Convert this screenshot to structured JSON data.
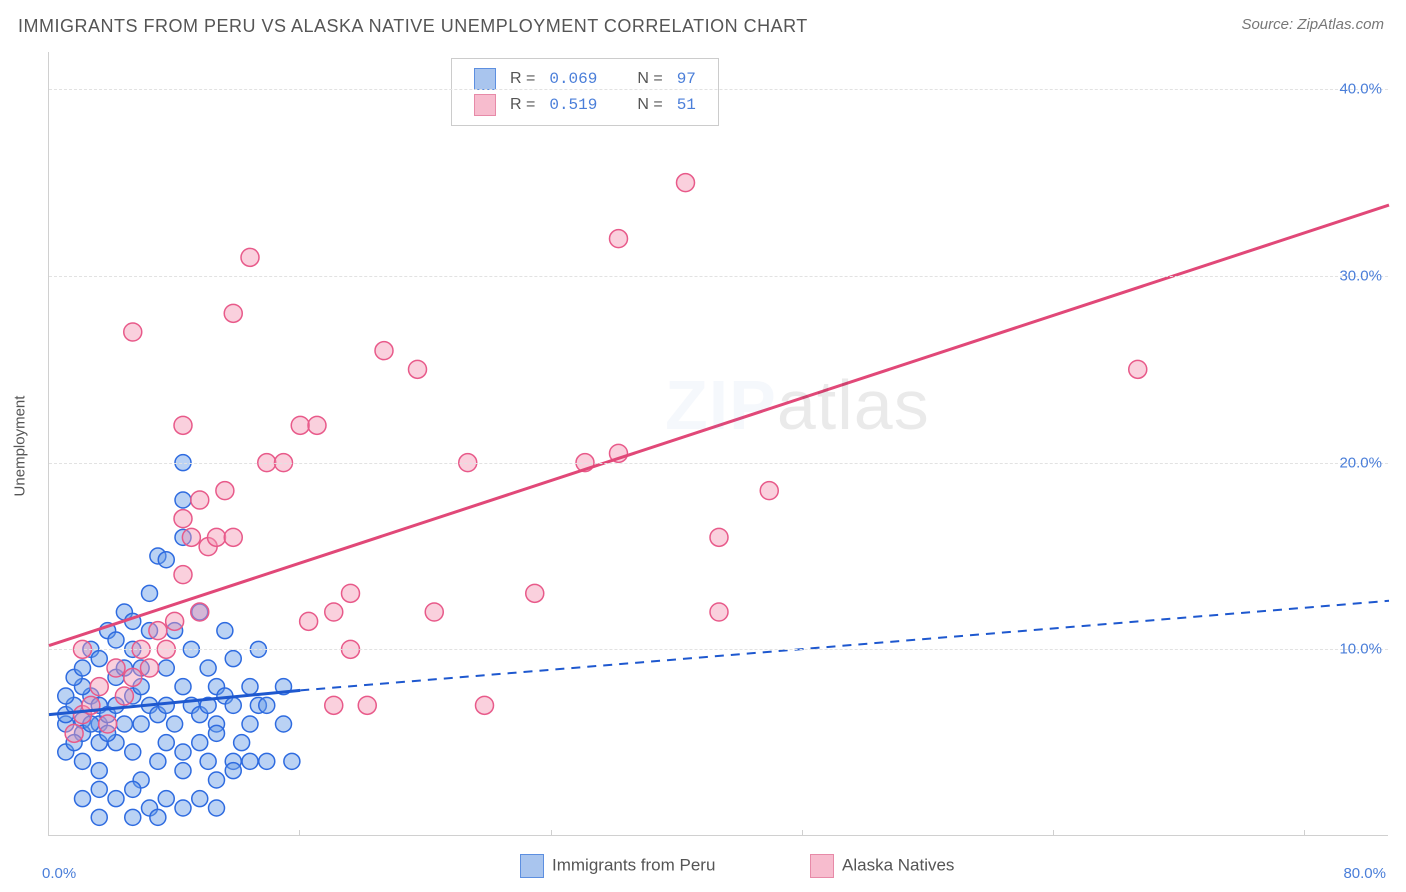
{
  "title": "IMMIGRANTS FROM PERU VS ALASKA NATIVE UNEMPLOYMENT CORRELATION CHART",
  "source": "Source: ZipAtlas.com",
  "ylabel": "Unemployment",
  "watermark": {
    "bold": "ZIP",
    "rest": "atlas"
  },
  "axes": {
    "xmin": 0,
    "xmax": 80,
    "ymin": 0,
    "ymax": 42,
    "xticks": [
      0,
      80
    ],
    "xtick_marks": [
      15,
      30,
      45,
      60,
      75
    ],
    "yticks": [
      10,
      20,
      30,
      40
    ],
    "xtick_labels": [
      "0.0%",
      "80.0%"
    ],
    "ytick_labels": [
      "10.0%",
      "20.0%",
      "30.0%",
      "40.0%"
    ],
    "grid_color": "#e2e2e2",
    "axis_color": "#d0d0d0"
  },
  "series": [
    {
      "name": "Immigrants from Peru",
      "short": "peru",
      "color": "#2e6be0",
      "fill": "rgba(103,155,230,0.45)",
      "swatch_fill": "#a9c5ee",
      "swatch_border": "#5d8fe0",
      "marker_r": 8,
      "stroke_w": 1.5,
      "R": "0.069",
      "N": "97",
      "trend": {
        "x1": 0,
        "y1": 6.5,
        "x2": 15,
        "y2": 7.8,
        "ext_x2": 80,
        "ext_y2": 12.6,
        "color": "#1e58cf",
        "width": 3,
        "dash": "9,7"
      },
      "points": [
        [
          1,
          6
        ],
        [
          1,
          6.5
        ],
        [
          1.5,
          7
        ],
        [
          2,
          6.2
        ],
        [
          2,
          5.5
        ],
        [
          2.5,
          7.5
        ],
        [
          2,
          8
        ],
        [
          3,
          6
        ],
        [
          3,
          7
        ],
        [
          3,
          5
        ],
        [
          3.5,
          6.5
        ],
        [
          4,
          7
        ],
        [
          4,
          8.5
        ],
        [
          4.5,
          6
        ],
        [
          4.5,
          9
        ],
        [
          5,
          7.5
        ],
        [
          5,
          10
        ],
        [
          5.5,
          6
        ],
        [
          5.5,
          8
        ],
        [
          6,
          7
        ],
        [
          6,
          11
        ],
        [
          6,
          13
        ],
        [
          6.5,
          6.5
        ],
        [
          6.5,
          15
        ],
        [
          7,
          7
        ],
        [
          7,
          9
        ],
        [
          7,
          14.8
        ],
        [
          7.5,
          6
        ],
        [
          7.5,
          11
        ],
        [
          8,
          8
        ],
        [
          8,
          16
        ],
        [
          8,
          18
        ],
        [
          8,
          20
        ],
        [
          8.5,
          7
        ],
        [
          8.5,
          10
        ],
        [
          9,
          6.5
        ],
        [
          9,
          12
        ],
        [
          9.5,
          7
        ],
        [
          9.5,
          9
        ],
        [
          10,
          8
        ],
        [
          10,
          6
        ],
        [
          10.5,
          7.5
        ],
        [
          10.5,
          11
        ],
        [
          11,
          7
        ],
        [
          11,
          9.5
        ],
        [
          11,
          4
        ],
        [
          12,
          8
        ],
        [
          12,
          6
        ],
        [
          12.5,
          7
        ],
        [
          12.5,
          10
        ],
        [
          1,
          4.5
        ],
        [
          2,
          4
        ],
        [
          3,
          3.5
        ],
        [
          4,
          5
        ],
        [
          5,
          4.5
        ],
        [
          5.5,
          3
        ],
        [
          6.5,
          4
        ],
        [
          7,
          5
        ],
        [
          8,
          4.5
        ],
        [
          8,
          3.5
        ],
        [
          9,
          5
        ],
        [
          9.5,
          4
        ],
        [
          10,
          3
        ],
        [
          10,
          5.5
        ],
        [
          11,
          3.5
        ],
        [
          11.5,
          5
        ],
        [
          12,
          4
        ],
        [
          1.5,
          5
        ],
        [
          2.5,
          6
        ],
        [
          3.5,
          5.5
        ],
        [
          1,
          7.5
        ],
        [
          1.5,
          8.5
        ],
        [
          2,
          9
        ],
        [
          2.5,
          10
        ],
        [
          3,
          9.5
        ],
        [
          3.5,
          11
        ],
        [
          4,
          10.5
        ],
        [
          4.5,
          12
        ],
        [
          5,
          11.5
        ],
        [
          5.5,
          9
        ],
        [
          13,
          7
        ],
        [
          13,
          4
        ],
        [
          14,
          8
        ],
        [
          14,
          6
        ],
        [
          14.5,
          4
        ],
        [
          2,
          2
        ],
        [
          3,
          2.5
        ],
        [
          4,
          2
        ],
        [
          5,
          2.5
        ],
        [
          6,
          1.5
        ],
        [
          7,
          2
        ],
        [
          8,
          1.5
        ],
        [
          9,
          2
        ],
        [
          10,
          1.5
        ],
        [
          5,
          1
        ],
        [
          6.5,
          1
        ],
        [
          3,
          1
        ]
      ]
    },
    {
      "name": "Alaska Natives",
      "short": "alaska",
      "color": "#e85a8a",
      "fill": "rgba(244,150,180,0.45)",
      "swatch_fill": "#f7bcce",
      "swatch_border": "#e78aa8",
      "marker_r": 9,
      "stroke_w": 1.5,
      "R": "0.519",
      "N": "51",
      "trend": {
        "x1": 0,
        "y1": 10.2,
        "x2": 80,
        "y2": 33.8,
        "color": "#e14878",
        "width": 3,
        "dash": ""
      },
      "points": [
        [
          2,
          6.5
        ],
        [
          2.5,
          7
        ],
        [
          3,
          8
        ],
        [
          3.5,
          6
        ],
        [
          4,
          9
        ],
        [
          4.5,
          7.5
        ],
        [
          5,
          8.5
        ],
        [
          5.5,
          10
        ],
        [
          6,
          9
        ],
        [
          6.5,
          11
        ],
        [
          7,
          10
        ],
        [
          7.5,
          11.5
        ],
        [
          8,
          14
        ],
        [
          8,
          17
        ],
        [
          8.5,
          16
        ],
        [
          9,
          18
        ],
        [
          9,
          12
        ],
        [
          9.5,
          15.5
        ],
        [
          10,
          16
        ],
        [
          10.5,
          18.5
        ],
        [
          11,
          16
        ],
        [
          11,
          28
        ],
        [
          5,
          27
        ],
        [
          13,
          20
        ],
        [
          14,
          20
        ],
        [
          15,
          22
        ],
        [
          15.5,
          11.5
        ],
        [
          12,
          31
        ],
        [
          16,
          22
        ],
        [
          17,
          12
        ],
        [
          17,
          7
        ],
        [
          18,
          10
        ],
        [
          19,
          7
        ],
        [
          18,
          13
        ],
        [
          8,
          22
        ],
        [
          20,
          26
        ],
        [
          22,
          25
        ],
        [
          23,
          12
        ],
        [
          25,
          20
        ],
        [
          26,
          7
        ],
        [
          29,
          13
        ],
        [
          32,
          20
        ],
        [
          34,
          20.5
        ],
        [
          34,
          32
        ],
        [
          38,
          35
        ],
        [
          40,
          16
        ],
        [
          40,
          12
        ],
        [
          43,
          18.5
        ],
        [
          65,
          25
        ],
        [
          1.5,
          5.5
        ],
        [
          2,
          10
        ]
      ]
    }
  ],
  "legend_bottom": [
    {
      "series": "peru",
      "label": "Immigrants from Peru"
    },
    {
      "series": "alaska",
      "label": "Alaska Natives"
    }
  ]
}
